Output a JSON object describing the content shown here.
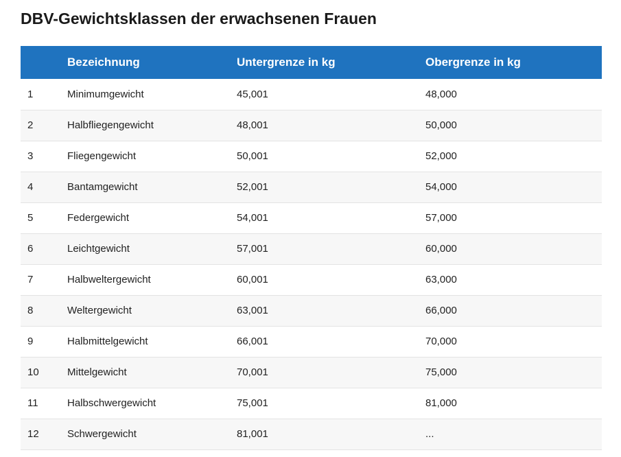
{
  "title": "DBV-Gewichtsklassen der erwachsenen Frauen",
  "table": {
    "headers": [
      "",
      "Bezeichnung",
      "Untergrenze in kg",
      "Obergrenze in kg"
    ],
    "rows": [
      {
        "num": "1",
        "name": "Minimumgewicht",
        "lower": "45,001",
        "upper": "48,000"
      },
      {
        "num": "2",
        "name": "Halbfliegengewicht",
        "lower": "48,001",
        "upper": "50,000"
      },
      {
        "num": "3",
        "name": "Fliegengewicht",
        "lower": "50,001",
        "upper": "52,000"
      },
      {
        "num": "4",
        "name": "Bantamgewicht",
        "lower": "52,001",
        "upper": "54,000"
      },
      {
        "num": "5",
        "name": "Federgewicht",
        "lower": "54,001",
        "upper": "57,000"
      },
      {
        "num": "6",
        "name": "Leichtgewicht",
        "lower": "57,001",
        "upper": "60,000"
      },
      {
        "num": "7",
        "name": "Halbweltergewicht",
        "lower": "60,001",
        "upper": "63,000"
      },
      {
        "num": "8",
        "name": "Weltergewicht",
        "lower": "63,001",
        "upper": "66,000"
      },
      {
        "num": "9",
        "name": "Halbmittelgewicht",
        "lower": "66,001",
        "upper": "70,000"
      },
      {
        "num": "10",
        "name": "Mittelgewicht",
        "lower": "70,001",
        "upper": "75,000"
      },
      {
        "num": "11",
        "name": "Halbschwergewicht",
        "lower": "75,001",
        "upper": "81,000"
      },
      {
        "num": "12",
        "name": "Schwergewicht",
        "lower": "81,001",
        "upper": "..."
      }
    ]
  },
  "colors": {
    "header_background": "#1f73bf",
    "header_text": "#ffffff",
    "row_alt_background": "#f7f7f7"
  }
}
